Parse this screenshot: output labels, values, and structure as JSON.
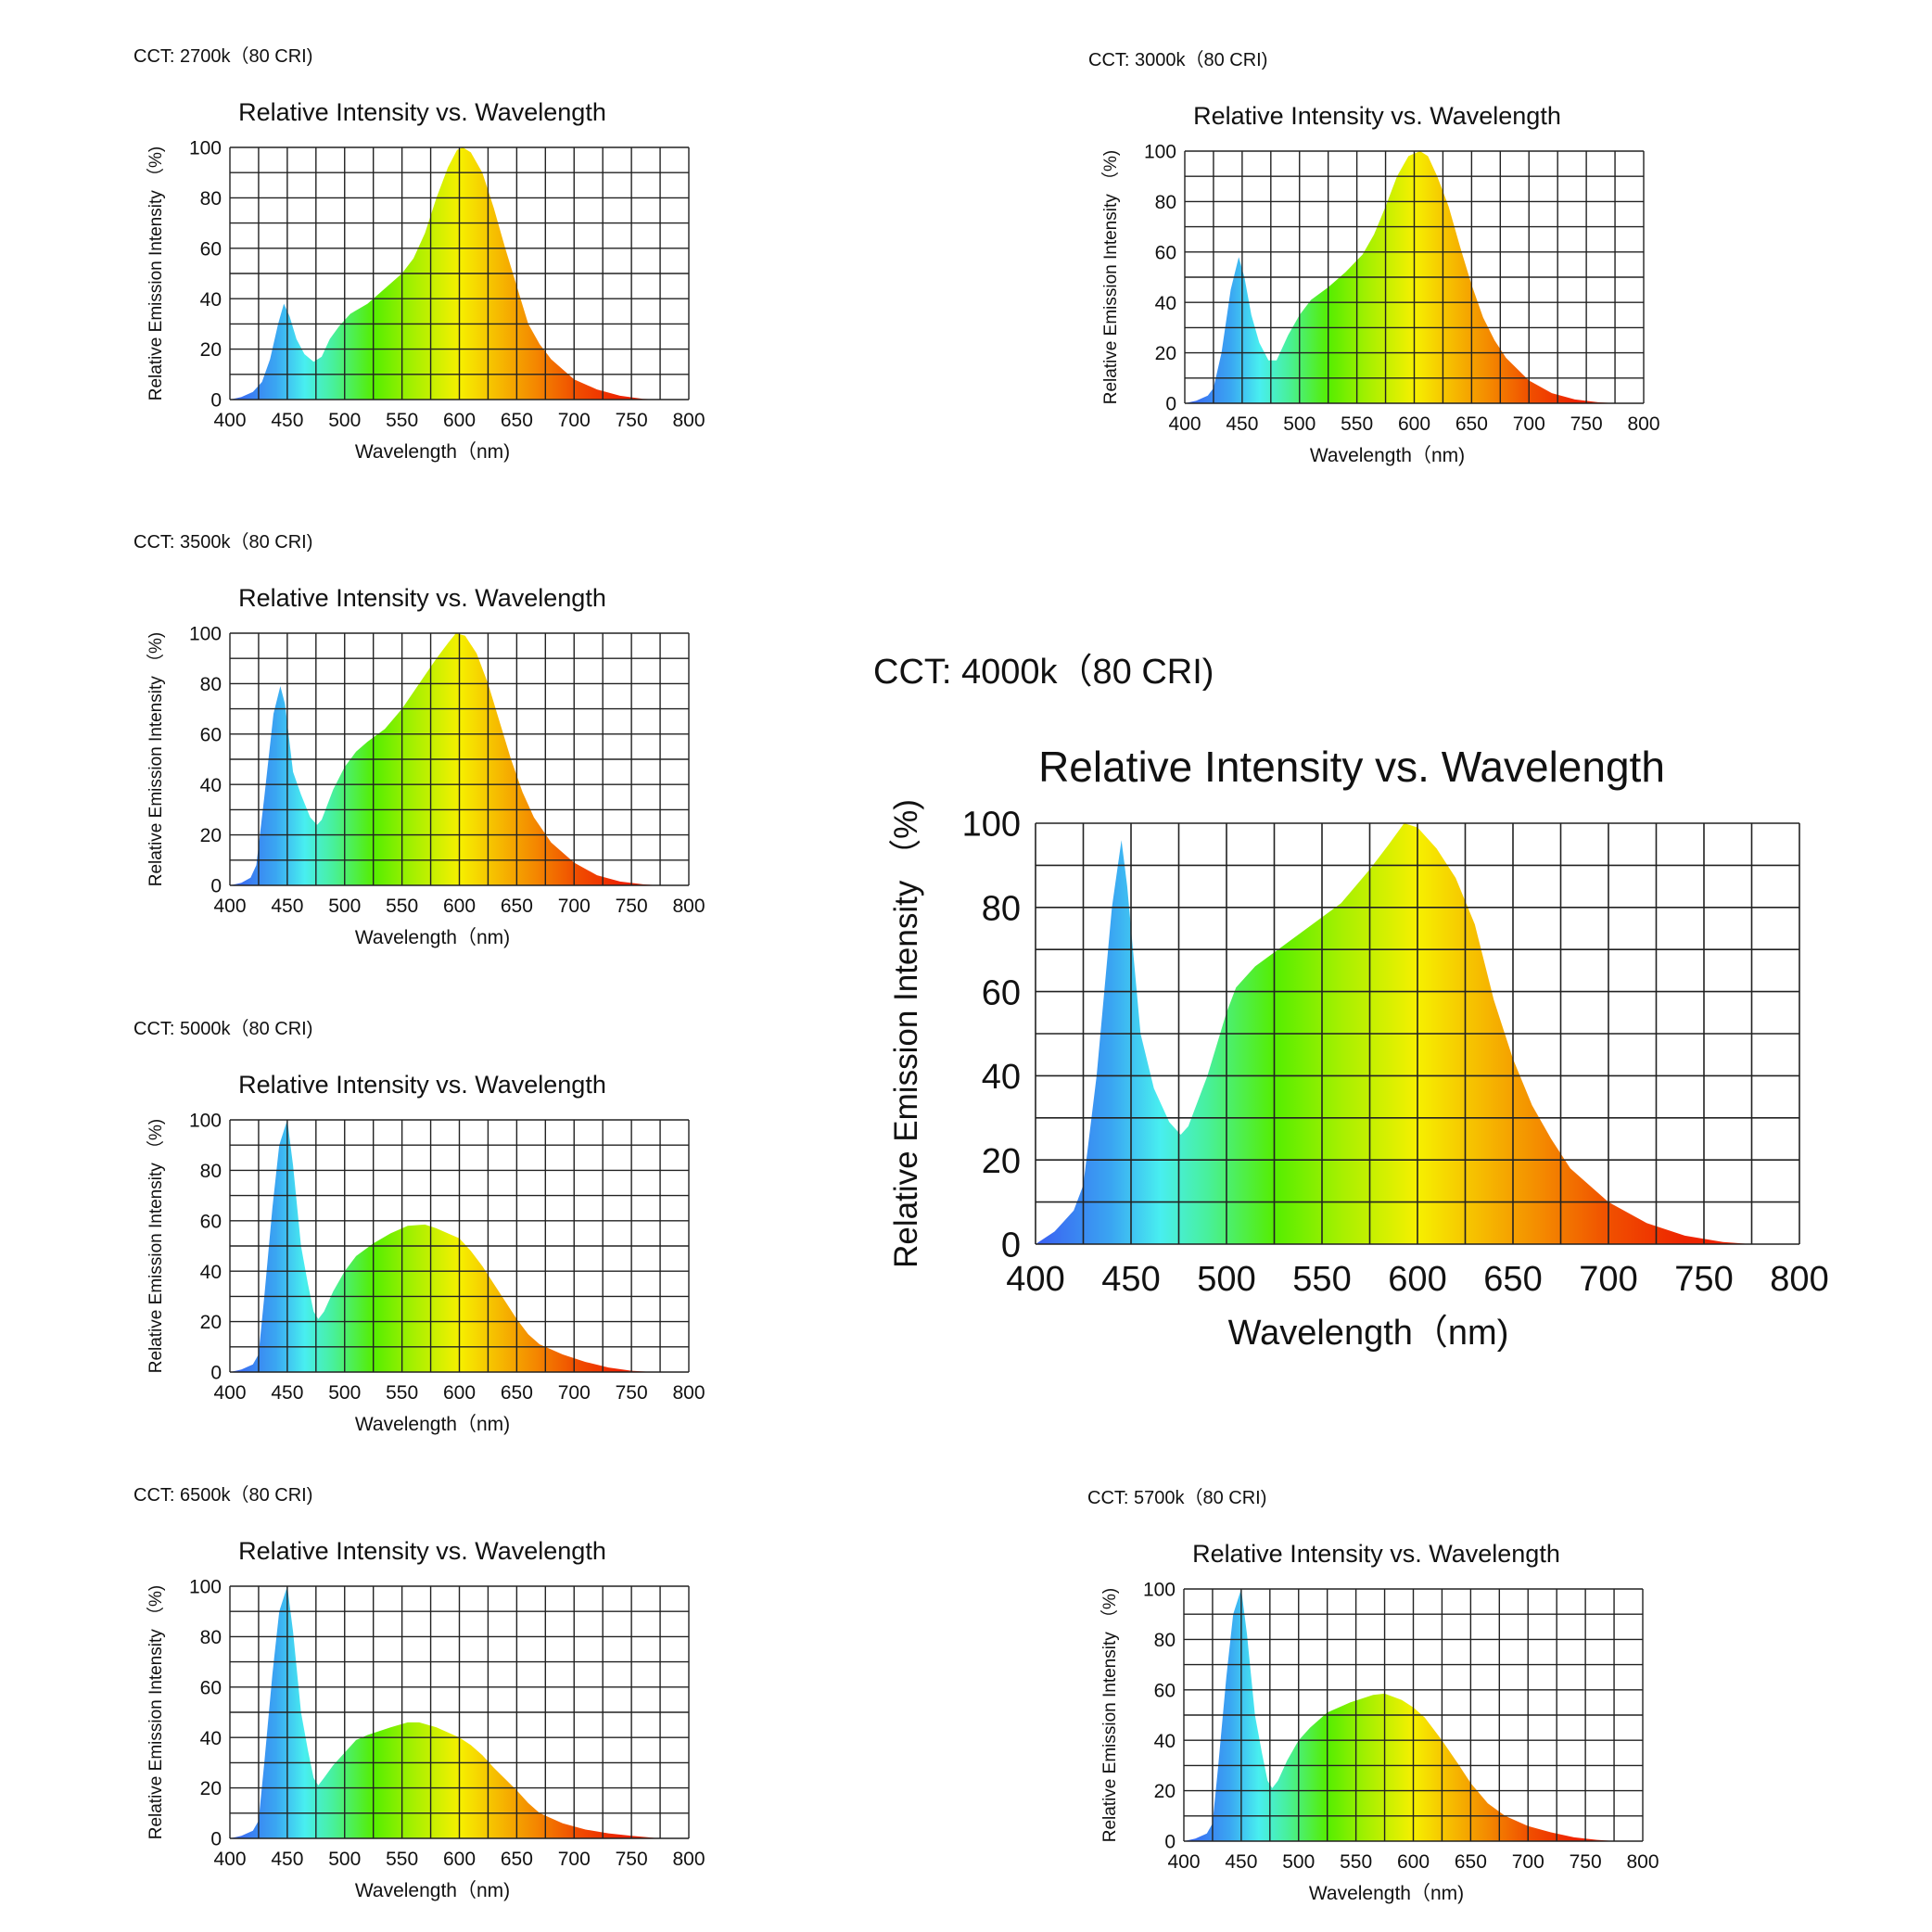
{
  "spectrum_gradient": [
    {
      "nm": 400,
      "color": "#3a5ef2"
    },
    {
      "nm": 440,
      "color": "#3aa6f2"
    },
    {
      "nm": 465,
      "color": "#48eef0"
    },
    {
      "nm": 490,
      "color": "#48f09c"
    },
    {
      "nm": 525,
      "color": "#55ee00"
    },
    {
      "nm": 560,
      "color": "#a6f000"
    },
    {
      "nm": 600,
      "color": "#f6f000"
    },
    {
      "nm": 630,
      "color": "#f6c000"
    },
    {
      "nm": 665,
      "color": "#f48a00"
    },
    {
      "nm": 700,
      "color": "#f05000"
    },
    {
      "nm": 740,
      "color": "#ee2400"
    },
    {
      "nm": 800,
      "color": "#ee2000"
    }
  ],
  "chart_data": [
    {
      "type": "area",
      "label": "CCT: 2700k（80 CRI)",
      "title": "Relative Intensity vs. Wavelength",
      "xlabel": "Wavelength（nm)",
      "ylabel": "Relative Emission Intensity （%)",
      "xlim": [
        400,
        800
      ],
      "ylim": [
        0,
        100
      ],
      "xticks": [
        400,
        450,
        500,
        550,
        600,
        650,
        700,
        750,
        800
      ],
      "yticks": [
        0,
        20,
        40,
        60,
        80,
        100
      ],
      "grid": true,
      "points": [
        [
          400,
          0
        ],
        [
          410,
          1
        ],
        [
          420,
          3
        ],
        [
          428,
          7
        ],
        [
          435,
          16
        ],
        [
          442,
          30
        ],
        [
          447,
          38
        ],
        [
          452,
          33
        ],
        [
          458,
          24
        ],
        [
          465,
          18
        ],
        [
          473,
          15
        ],
        [
          480,
          17
        ],
        [
          487,
          24
        ],
        [
          495,
          29
        ],
        [
          505,
          34
        ],
        [
          520,
          38
        ],
        [
          535,
          44
        ],
        [
          550,
          50
        ],
        [
          560,
          56
        ],
        [
          570,
          66
        ],
        [
          580,
          80
        ],
        [
          590,
          92
        ],
        [
          598,
          99
        ],
        [
          603,
          100
        ],
        [
          610,
          98
        ],
        [
          620,
          90
        ],
        [
          630,
          76
        ],
        [
          640,
          60
        ],
        [
          650,
          45
        ],
        [
          660,
          30
        ],
        [
          670,
          22
        ],
        [
          680,
          16
        ],
        [
          700,
          8
        ],
        [
          720,
          4
        ],
        [
          740,
          1.5
        ],
        [
          760,
          0.3
        ],
        [
          775,
          0
        ]
      ]
    },
    {
      "type": "area",
      "label": "CCT: 3000k（80 CRI)",
      "title": "Relative Intensity vs. Wavelength",
      "xlabel": "Wavelength（nm)",
      "ylabel": "Relative Emission Intensity （%)",
      "xlim": [
        400,
        800
      ],
      "ylim": [
        0,
        100
      ],
      "xticks": [
        400,
        450,
        500,
        550,
        600,
        650,
        700,
        750,
        800
      ],
      "yticks": [
        0,
        20,
        40,
        60,
        80,
        100
      ],
      "grid": true,
      "points": [
        [
          400,
          0
        ],
        [
          410,
          1
        ],
        [
          420,
          3
        ],
        [
          425,
          6
        ],
        [
          432,
          20
        ],
        [
          440,
          45
        ],
        [
          447,
          58
        ],
        [
          452,
          50
        ],
        [
          458,
          35
        ],
        [
          465,
          24
        ],
        [
          473,
          17
        ],
        [
          480,
          17
        ],
        [
          490,
          27
        ],
        [
          500,
          35
        ],
        [
          510,
          41
        ],
        [
          525,
          46
        ],
        [
          540,
          52
        ],
        [
          555,
          59
        ],
        [
          565,
          67
        ],
        [
          575,
          78
        ],
        [
          585,
          90
        ],
        [
          595,
          98
        ],
        [
          605,
          100
        ],
        [
          612,
          98
        ],
        [
          620,
          90
        ],
        [
          630,
          78
        ],
        [
          640,
          62
        ],
        [
          650,
          47
        ],
        [
          660,
          34
        ],
        [
          670,
          25
        ],
        [
          680,
          18
        ],
        [
          700,
          9
        ],
        [
          720,
          4
        ],
        [
          740,
          1.5
        ],
        [
          760,
          0.4
        ],
        [
          777,
          0
        ]
      ]
    },
    {
      "type": "area",
      "label": "CCT: 3500k（80 CRI)",
      "title": "Relative Intensity vs. Wavelength",
      "xlabel": "Wavelength（nm)",
      "ylabel": "Relative Emission Intensity （%)",
      "xlim": [
        400,
        800
      ],
      "ylim": [
        0,
        100
      ],
      "xticks": [
        400,
        450,
        500,
        550,
        600,
        650,
        700,
        750,
        800
      ],
      "yticks": [
        0,
        20,
        40,
        60,
        80,
        100
      ],
      "grid": true,
      "points": [
        [
          400,
          0
        ],
        [
          410,
          1
        ],
        [
          418,
          3
        ],
        [
          423,
          8
        ],
        [
          430,
          35
        ],
        [
          438,
          68
        ],
        [
          444,
          79
        ],
        [
          448,
          72
        ],
        [
          455,
          45
        ],
        [
          462,
          36
        ],
        [
          470,
          27
        ],
        [
          476,
          24
        ],
        [
          480,
          26
        ],
        [
          490,
          38
        ],
        [
          500,
          47
        ],
        [
          510,
          53
        ],
        [
          520,
          57
        ],
        [
          535,
          62
        ],
        [
          550,
          70
        ],
        [
          565,
          80
        ],
        [
          580,
          90
        ],
        [
          590,
          96
        ],
        [
          597,
          100
        ],
        [
          605,
          99
        ],
        [
          615,
          92
        ],
        [
          625,
          80
        ],
        [
          635,
          65
        ],
        [
          645,
          50
        ],
        [
          655,
          37
        ],
        [
          665,
          27
        ],
        [
          680,
          17
        ],
        [
          700,
          9
        ],
        [
          720,
          4
        ],
        [
          740,
          1.5
        ],
        [
          760,
          0.4
        ],
        [
          775,
          0
        ]
      ]
    },
    {
      "type": "area",
      "label": "CCT: 4000k（80 CRI)",
      "title": "Relative Intensity vs. Wavelength",
      "xlabel": "Wavelength（nm)",
      "ylabel": "Relative Emission Intensity （%)",
      "xlim": [
        400,
        800
      ],
      "ylim": [
        0,
        100
      ],
      "xticks": [
        400,
        450,
        500,
        550,
        600,
        650,
        700,
        750,
        800
      ],
      "yticks": [
        0,
        20,
        40,
        60,
        80,
        100
      ],
      "grid": true,
      "points": [
        [
          400,
          0
        ],
        [
          410,
          3
        ],
        [
          420,
          8
        ],
        [
          425,
          14
        ],
        [
          432,
          40
        ],
        [
          440,
          80
        ],
        [
          445,
          96
        ],
        [
          448,
          85
        ],
        [
          455,
          50
        ],
        [
          462,
          37
        ],
        [
          470,
          29
        ],
        [
          476,
          26
        ],
        [
          480,
          28
        ],
        [
          490,
          40
        ],
        [
          500,
          55
        ],
        [
          505,
          61
        ],
        [
          515,
          66
        ],
        [
          530,
          71
        ],
        [
          545,
          76
        ],
        [
          560,
          81
        ],
        [
          575,
          89
        ],
        [
          585,
          95
        ],
        [
          593,
          100
        ],
        [
          600,
          99
        ],
        [
          610,
          94
        ],
        [
          620,
          87
        ],
        [
          630,
          76
        ],
        [
          640,
          58
        ],
        [
          650,
          44
        ],
        [
          660,
          33
        ],
        [
          670,
          25
        ],
        [
          680,
          18
        ],
        [
          700,
          10
        ],
        [
          720,
          5
        ],
        [
          740,
          2
        ],
        [
          760,
          0.5
        ],
        [
          775,
          0
        ]
      ]
    },
    {
      "type": "area",
      "label": "CCT: 5000k（80 CRI)",
      "title": "Relative Intensity vs. Wavelength",
      "xlabel": "Wavelength（nm)",
      "ylabel": "Relative Emission Intensity （%)",
      "xlim": [
        400,
        800
      ],
      "ylim": [
        0,
        100
      ],
      "xticks": [
        400,
        450,
        500,
        550,
        600,
        650,
        700,
        750,
        800
      ],
      "yticks": [
        0,
        20,
        40,
        60,
        80,
        100
      ],
      "grid": true,
      "points": [
        [
          400,
          0
        ],
        [
          410,
          1
        ],
        [
          420,
          3
        ],
        [
          425,
          7
        ],
        [
          430,
          30
        ],
        [
          437,
          65
        ],
        [
          443,
          90
        ],
        [
          450,
          100
        ],
        [
          455,
          82
        ],
        [
          462,
          50
        ],
        [
          468,
          35
        ],
        [
          473,
          24
        ],
        [
          477,
          21
        ],
        [
          482,
          24
        ],
        [
          490,
          32
        ],
        [
          500,
          40
        ],
        [
          510,
          46
        ],
        [
          525,
          51
        ],
        [
          540,
          55
        ],
        [
          555,
          58
        ],
        [
          570,
          58.5
        ],
        [
          580,
          57
        ],
        [
          590,
          55
        ],
        [
          600,
          53
        ],
        [
          610,
          48
        ],
        [
          620,
          42
        ],
        [
          630,
          35
        ],
        [
          640,
          28
        ],
        [
          650,
          21
        ],
        [
          660,
          15
        ],
        [
          670,
          11
        ],
        [
          690,
          7
        ],
        [
          710,
          4
        ],
        [
          730,
          1.8
        ],
        [
          750,
          0.5
        ],
        [
          770,
          0
        ]
      ]
    },
    {
      "type": "area",
      "label": "CCT: 6500k（80 CRI)",
      "title": "Relative Intensity vs. Wavelength",
      "xlabel": "Wavelength（nm)",
      "ylabel": "Relative Emission Intensity （%)",
      "xlim": [
        400,
        800
      ],
      "ylim": [
        0,
        100
      ],
      "xticks": [
        400,
        450,
        500,
        550,
        600,
        650,
        700,
        750,
        800
      ],
      "yticks": [
        0,
        20,
        40,
        60,
        80,
        100
      ],
      "grid": true,
      "points": [
        [
          400,
          0
        ],
        [
          410,
          1
        ],
        [
          420,
          3
        ],
        [
          425,
          7
        ],
        [
          430,
          30
        ],
        [
          437,
          65
        ],
        [
          443,
          90
        ],
        [
          450,
          100
        ],
        [
          455,
          82
        ],
        [
          462,
          50
        ],
        [
          468,
          35
        ],
        [
          473,
          24
        ],
        [
          477,
          21
        ],
        [
          482,
          24
        ],
        [
          490,
          29
        ],
        [
          500,
          34
        ],
        [
          510,
          39
        ],
        [
          520,
          41
        ],
        [
          540,
          44
        ],
        [
          555,
          46
        ],
        [
          565,
          46
        ],
        [
          580,
          44
        ],
        [
          600,
          40
        ],
        [
          610,
          37
        ],
        [
          620,
          33
        ],
        [
          630,
          28
        ],
        [
          650,
          19
        ],
        [
          660,
          14
        ],
        [
          670,
          10
        ],
        [
          690,
          6
        ],
        [
          710,
          3.5
        ],
        [
          730,
          2
        ],
        [
          750,
          1
        ],
        [
          775,
          0
        ]
      ]
    },
    {
      "type": "area",
      "label": "CCT: 5700k（80 CRI)",
      "title": "Relative Intensity vs. Wavelength",
      "xlabel": "Wavelength（nm)",
      "ylabel": "Relative Emission Intensity （%)",
      "xlim": [
        400,
        800
      ],
      "ylim": [
        0,
        100
      ],
      "xticks": [
        400,
        450,
        500,
        550,
        600,
        650,
        700,
        750,
        800
      ],
      "yticks": [
        0,
        20,
        40,
        60,
        80,
        100
      ],
      "grid": true,
      "points": [
        [
          400,
          0
        ],
        [
          410,
          1
        ],
        [
          420,
          3
        ],
        [
          425,
          7
        ],
        [
          430,
          30
        ],
        [
          437,
          65
        ],
        [
          443,
          90
        ],
        [
          450,
          100
        ],
        [
          455,
          82
        ],
        [
          462,
          50
        ],
        [
          468,
          35
        ],
        [
          473,
          24
        ],
        [
          477,
          21
        ],
        [
          482,
          24
        ],
        [
          490,
          32
        ],
        [
          500,
          40
        ],
        [
          510,
          45
        ],
        [
          525,
          51
        ],
        [
          545,
          55
        ],
        [
          565,
          58
        ],
        [
          575,
          58.5
        ],
        [
          590,
          56
        ],
        [
          600,
          53
        ],
        [
          610,
          49
        ],
        [
          625,
          40
        ],
        [
          640,
          30
        ],
        [
          650,
          23
        ],
        [
          665,
          15
        ],
        [
          680,
          10
        ],
        [
          700,
          6
        ],
        [
          720,
          3.5
        ],
        [
          740,
          1.5
        ],
        [
          760,
          0.5
        ],
        [
          777,
          0
        ]
      ]
    }
  ]
}
